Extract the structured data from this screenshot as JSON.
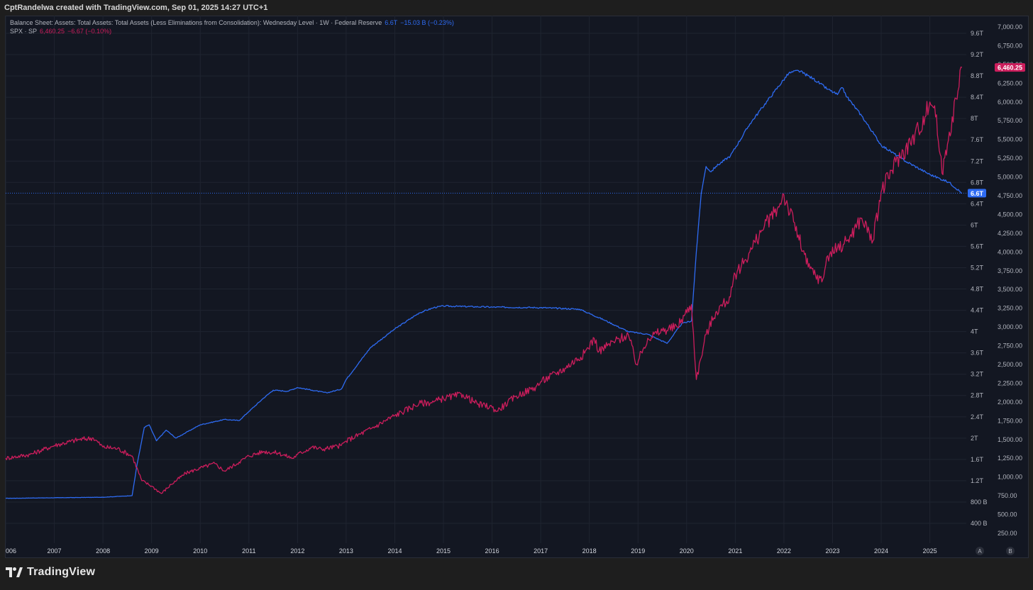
{
  "header": {
    "text": "CptRandelwa created with TradingView.com, Sep 01, 2025 14:27 UTC+1"
  },
  "legend": {
    "series1": {
      "title": "Balance Sheet: Assets: Total Assets: Total Assets (Less Eliminations from Consolidation): Wednesday Level · 1W · Federal Reserve",
      "value": "6.6T",
      "change": "−15.03 B (−0.23%)"
    },
    "series2": {
      "title": "SPX · SP",
      "value": "6,460.25",
      "change": "−6.67 (−0.10%)"
    }
  },
  "footer": {
    "logo_text": "TradingView"
  },
  "scale_buttons": [
    "A",
    "B"
  ],
  "chart_data": {
    "type": "line",
    "x_axis": {
      "tick_labels": [
        "006",
        "2007",
        "2008",
        "2009",
        "2010",
        "2011",
        "2012",
        "2013",
        "2014",
        "2015",
        "2016",
        "2017",
        "2018",
        "2019",
        "2020",
        "2021",
        "2022",
        "2023",
        "2024",
        "2025"
      ],
      "range": [
        2006.0,
        2025.75
      ]
    },
    "left_axis": {
      "label": "",
      "tick_labels": [
        "9.6T",
        "9.2T",
        "8.8T",
        "8.4T",
        "8T",
        "7.6T",
        "7.2T",
        "6.8T",
        "6.4T",
        "6T",
        "5.6T",
        "5.2T",
        "4.8T",
        "4.4T",
        "4T",
        "3.6T",
        "3.2T",
        "2.8T",
        "2.4T",
        "2T",
        "1.6T",
        "1.2T",
        "800 B",
        "400 B"
      ],
      "range_trillions": [
        0.0,
        9.6
      ]
    },
    "right_axis": {
      "label": "",
      "tick_labels": [
        "7,000.00",
        "6,750.00",
        "6,500.00",
        "6,250.00",
        "6,000.00",
        "5,750.00",
        "5,500.00",
        "5,250.00",
        "5,000.00",
        "4,750.00",
        "4,500.00",
        "4,250.00",
        "4,000.00",
        "3,750.00",
        "3,500.00",
        "3,250.00",
        "3,000.00",
        "2,750.00",
        "2,500.00",
        "2,250.00",
        "2,000.00",
        "1,750.00",
        "1,500.00",
        "1,250.00",
        "1,000.00",
        "750.00",
        "500.00",
        "250.00"
      ],
      "range": [
        0,
        7000
      ]
    },
    "last_labels": {
      "blue": "6.6T",
      "pink": "6,460.25"
    },
    "grid": true,
    "series": [
      {
        "color": "#2e6bf2",
        "axis": "left",
        "units": "trillions USD",
        "x": [
          2006.0,
          2007.0,
          2008.0,
          2008.6,
          2008.7,
          2008.85,
          2008.95,
          2009.1,
          2009.3,
          2009.5,
          2009.7,
          2010.0,
          2010.5,
          2010.8,
          2011.0,
          2011.3,
          2011.5,
          2011.8,
          2012.0,
          2012.3,
          2012.6,
          2012.9,
          2013.0,
          2013.5,
          2014.0,
          2014.5,
          2014.8,
          2015.0,
          2016.0,
          2017.0,
          2017.8,
          2018.3,
          2018.8,
          2019.2,
          2019.6,
          2019.9,
          2020.1,
          2020.2,
          2020.3,
          2020.4,
          2020.5,
          2020.6,
          2020.9,
          2021.3,
          2021.8,
          2022.1,
          2022.3,
          2022.6,
          2022.9,
          2023.1,
          2023.2,
          2023.3,
          2023.6,
          2024.0,
          2024.5,
          2025.0,
          2025.4,
          2025.66
        ],
        "y": [
          0.87,
          0.88,
          0.89,
          0.92,
          1.5,
          2.2,
          2.25,
          1.95,
          2.15,
          2.0,
          2.1,
          2.25,
          2.35,
          2.33,
          2.5,
          2.75,
          2.9,
          2.88,
          2.95,
          2.9,
          2.85,
          2.92,
          3.1,
          3.7,
          4.05,
          4.35,
          4.45,
          4.48,
          4.46,
          4.45,
          4.42,
          4.22,
          4.0,
          3.95,
          3.78,
          4.15,
          4.2,
          5.5,
          6.6,
          7.1,
          7.0,
          7.1,
          7.3,
          7.9,
          8.5,
          8.85,
          8.9,
          8.75,
          8.55,
          8.45,
          8.58,
          8.4,
          8.05,
          7.5,
          7.2,
          6.95,
          6.8,
          6.6
        ]
      },
      {
        "color": "#cc1d5c",
        "axis": "right",
        "units": "index points",
        "x": [
          2006.0,
          2006.5,
          2007.0,
          2007.5,
          2007.8,
          2008.0,
          2008.3,
          2008.6,
          2008.8,
          2009.0,
          2009.2,
          2009.4,
          2009.7,
          2010.0,
          2010.3,
          2010.5,
          2010.8,
          2011.0,
          2011.3,
          2011.6,
          2011.9,
          2012.0,
          2012.3,
          2012.5,
          2012.9,
          2013.0,
          2013.5,
          2014.0,
          2014.5,
          2014.8,
          2015.0,
          2015.4,
          2015.7,
          2016.0,
          2016.1,
          2016.5,
          2016.9,
          2017.0,
          2017.5,
          2017.9,
          2018.1,
          2018.2,
          2018.5,
          2018.8,
          2018.97,
          2019.2,
          2019.5,
          2019.8,
          2020.1,
          2020.2,
          2020.4,
          2020.6,
          2020.9,
          2021.0,
          2021.3,
          2021.6,
          2021.9,
          2021.98,
          2022.2,
          2022.5,
          2022.78,
          2022.9,
          2023.1,
          2023.3,
          2023.6,
          2023.83,
          2024.0,
          2024.3,
          2024.6,
          2024.9,
          2025.0,
          2025.1,
          2025.25,
          2025.4,
          2025.6,
          2025.66
        ],
        "y": [
          1250,
          1300,
          1420,
          1500,
          1520,
          1400,
          1380,
          1280,
          950,
          880,
          780,
          900,
          1050,
          1120,
          1180,
          1080,
          1200,
          1280,
          1340,
          1320,
          1250,
          1300,
          1400,
          1370,
          1420,
          1480,
          1640,
          1820,
          1980,
          2000,
          2050,
          2100,
          1970,
          1930,
          1880,
          2080,
          2200,
          2270,
          2450,
          2650,
          2850,
          2680,
          2800,
          2900,
          2500,
          2850,
          2950,
          3000,
          3300,
          2300,
          2900,
          3200,
          3400,
          3700,
          4000,
          4350,
          4600,
          4780,
          4400,
          3800,
          3600,
          3950,
          4050,
          4150,
          4450,
          4150,
          4800,
          5200,
          5450,
          5800,
          6000,
          5950,
          5050,
          5600,
          6200,
          6460
        ]
      }
    ]
  }
}
